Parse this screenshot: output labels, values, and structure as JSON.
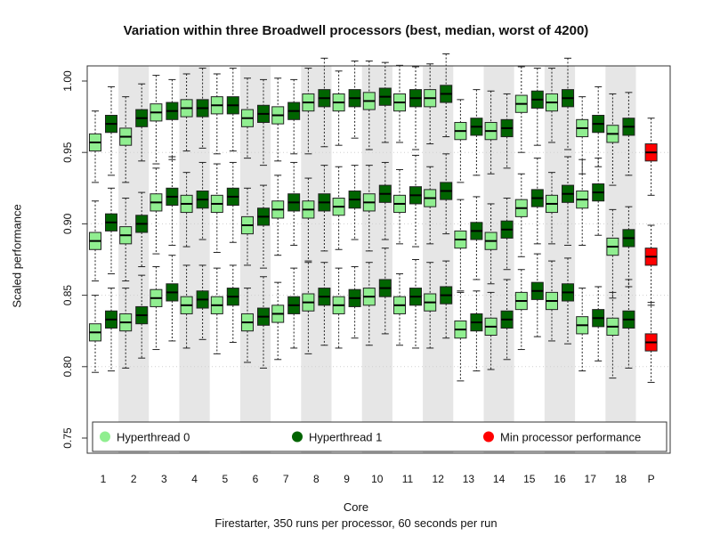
{
  "chart_data": {
    "type": "box",
    "title": "Variation within three Broadwell processors (best, median, worst of 4200)",
    "xlabel": "Core",
    "ylabel": "Scaled performance",
    "subtitle": "Firestarter, 350 runs per processor, 60 seconds per run",
    "ylim": [
      0.75,
      1.0
    ],
    "yticks": [
      "0.75",
      "0.80",
      "0.85",
      "0.90",
      "0.95",
      "1.00"
    ],
    "categories": [
      "1",
      "2",
      "3",
      "4",
      "5",
      "6",
      "7",
      "8",
      "9",
      "10",
      "11",
      "12",
      "13",
      "14",
      "15",
      "16",
      "17",
      "18",
      "P"
    ],
    "shaded_categories": [
      "2",
      "4",
      "6",
      "8",
      "10",
      "12",
      "14",
      "16",
      "18"
    ],
    "colors": {
      "ht0": "#90ee90",
      "ht1": "#006400",
      "min": "#ff0000",
      "shade": "#e6e6e6"
    },
    "legend": {
      "position": "bottom",
      "items": [
        {
          "label": "Hyperthread 0",
          "color": "#90ee90"
        },
        {
          "label": "Hyperthread 1",
          "color": "#006400"
        },
        {
          "label": "Min processor performance",
          "color": "#ff0000"
        }
      ]
    },
    "series": [
      {
        "name": "Hyperthread 0",
        "color": "#90ee90",
        "best": [
          0.957,
          0.961,
          0.978,
          0.981,
          0.983,
          0.974,
          0.976,
          0.985,
          0.985,
          0.986,
          0.985,
          0.988,
          0.965,
          0.965,
          0.984,
          0.985,
          0.967,
          0.963
        ],
        "median": [
          0.888,
          0.892,
          0.915,
          0.914,
          0.914,
          0.899,
          0.91,
          0.91,
          0.912,
          0.915,
          0.914,
          0.918,
          0.889,
          0.888,
          0.911,
          0.914,
          0.917,
          0.884
        ],
        "worst": [
          0.824,
          0.831,
          0.848,
          0.843,
          0.843,
          0.831,
          0.837,
          0.845,
          0.843,
          0.849,
          0.843,
          0.845,
          0.826,
          0.828,
          0.846,
          0.846,
          0.829,
          0.828
        ]
      },
      {
        "name": "Hyperthread 1",
        "color": "#006400",
        "best": [
          0.97,
          0.974,
          0.979,
          0.981,
          0.983,
          0.977,
          0.979,
          0.988,
          0.988,
          0.989,
          0.988,
          0.991,
          0.968,
          0.967,
          0.987,
          0.988,
          0.97,
          0.968
        ],
        "median": [
          0.901,
          0.9,
          0.919,
          0.917,
          0.919,
          0.905,
          0.915,
          0.915,
          0.917,
          0.921,
          0.92,
          0.923,
          0.895,
          0.896,
          0.918,
          0.921,
          0.922,
          0.89
        ],
        "worst": [
          0.833,
          0.836,
          0.852,
          0.847,
          0.849,
          0.835,
          0.843,
          0.849,
          0.848,
          0.855,
          0.849,
          0.85,
          0.831,
          0.833,
          0.853,
          0.852,
          0.834,
          0.833
        ]
      },
      {
        "name": "Min processor performance",
        "color": "#ff0000",
        "category": "P",
        "values": [
          0.95,
          0.877,
          0.817
        ]
      }
    ]
  }
}
